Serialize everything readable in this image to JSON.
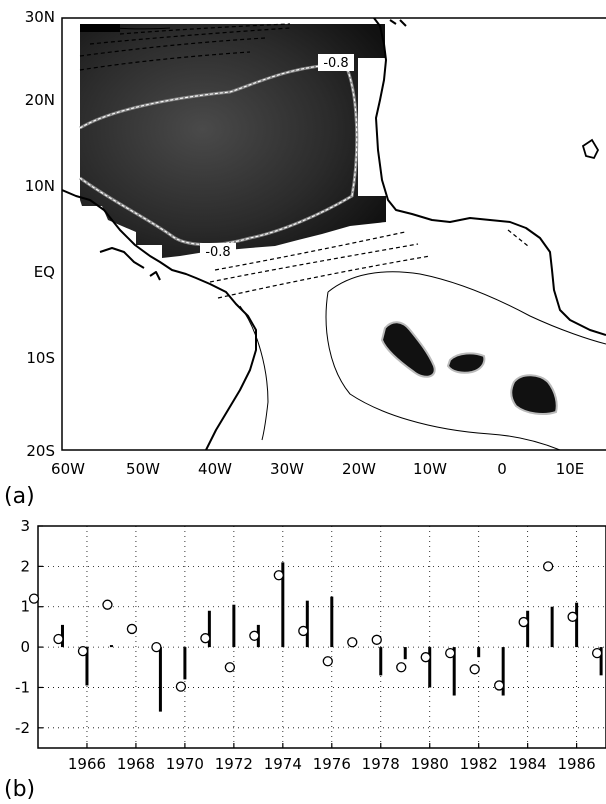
{
  "figure": {
    "panel_a_label": "(a)",
    "panel_b_label": "(b)"
  },
  "map": {
    "lat_ticks": [
      "30N",
      "20N",
      "10N",
      "EQ",
      "10S",
      "20S"
    ],
    "lon_ticks": [
      "60W",
      "50W",
      "40W",
      "30W",
      "20W",
      "10W",
      "0",
      "10E"
    ],
    "contour_labels": [
      "-0.8",
      "-0.8"
    ],
    "colors": {
      "shade_dark": "#1a1a1a",
      "shade_mid": "#333333",
      "land_line": "#000000"
    }
  },
  "chart_data": {
    "type": "scatter",
    "title": "",
    "xlabel": "",
    "ylabel": "",
    "xlim": [
      1964,
      1987.2
    ],
    "ylim": [
      -2.5,
      3
    ],
    "grid": true,
    "x_tick_labels": [
      "1966",
      "1968",
      "1970",
      "1972",
      "1974",
      "1976",
      "1978",
      "1980",
      "1982",
      "1984",
      "1986"
    ],
    "y_tick_labels": [
      "3",
      "2",
      "1",
      "0",
      "-1",
      "-2"
    ],
    "series": [
      {
        "marker": "open-circle",
        "x": [
          1964,
          1965,
          1966,
          1967,
          1968,
          1969,
          1970,
          1971,
          1972,
          1973,
          1974,
          1975,
          1976,
          1977,
          1978,
          1979,
          1980,
          1981,
          1982,
          1983,
          1984,
          1985,
          1986,
          1987
        ],
        "values": [
          1.2,
          0.2,
          -0.1,
          1.05,
          0.45,
          0.0,
          -0.98,
          0.22,
          -0.5,
          0.28,
          1.78,
          0.4,
          -0.35,
          0.12,
          0.18,
          -0.5,
          -0.25,
          -0.15,
          -0.55,
          -0.95,
          0.62,
          2.0,
          0.75,
          -0.15
        ]
      },
      {
        "marker": "vertical-bar",
        "x": [
          1965,
          1966,
          1967,
          1968,
          1969,
          1970,
          1971,
          1972,
          1973,
          1974,
          1975,
          1976,
          1977,
          1978,
          1979,
          1980,
          1981,
          1982,
          1983,
          1984,
          1985,
          1986,
          1987
        ],
        "values": [
          0.55,
          -0.95,
          0.05,
          0.0,
          -1.6,
          -0.8,
          0.9,
          1.05,
          0.55,
          2.1,
          1.15,
          1.25,
          0.0,
          -0.7,
          -0.3,
          -1.0,
          -1.2,
          -0.25,
          -1.2,
          0.9,
          1.0,
          1.1,
          -0.7
        ]
      }
    ]
  }
}
